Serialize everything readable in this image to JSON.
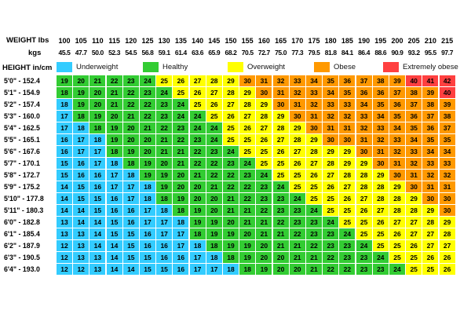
{
  "header": {
    "weight_label": "WEIGHT lbs",
    "kgs_label": "kgs",
    "height_label": "HEIGHT in/cm"
  },
  "legend": [
    {
      "key": "underweight",
      "label": "Underweight"
    },
    {
      "key": "healthy",
      "label": "Healthy"
    },
    {
      "key": "overweight",
      "label": "Overweight"
    },
    {
      "key": "obese",
      "label": "Obese"
    },
    {
      "key": "extremely_obese",
      "label": "Extremely obese"
    }
  ],
  "colors": {
    "underweight": "#33CCFF",
    "healthy": "#33CC33",
    "overweight": "#FFFF00",
    "obese": "#FF9900",
    "extremely_obese": "#FF4040",
    "text": "#000000",
    "background": "#FFFFFF"
  },
  "chart_data": {
    "type": "heatmap",
    "title": "",
    "xlabel": "WEIGHT lbs / kgs",
    "ylabel": "HEIGHT in/cm",
    "weights_lbs": [
      100,
      105,
      110,
      115,
      120,
      125,
      130,
      135,
      140,
      145,
      150,
      155,
      160,
      165,
      170,
      175,
      180,
      185,
      190,
      195,
      200,
      205,
      210,
      215
    ],
    "weights_kgs": [
      "45.5",
      "47.7",
      "50.0",
      "52.3",
      "54.5",
      "56.8",
      "59.1",
      "61.4",
      "63.6",
      "65.9",
      "68.2",
      "70.5",
      "72.7",
      "75.0",
      "77.3",
      "79.5",
      "81.8",
      "84.1",
      "86.4",
      "88.6",
      "90.9",
      "93.2",
      "95.5",
      "97.7"
    ],
    "legend_position": "top",
    "rows": [
      {
        "height_ft": "5'0\"",
        "height_cm": "152.4",
        "values": [
          19,
          20,
          21,
          22,
          23,
          24,
          25,
          26,
          27,
          28,
          29,
          30,
          31,
          32,
          33,
          34,
          35,
          36,
          37,
          38,
          39,
          40,
          41,
          42
        ],
        "green_from": 1,
        "yellow_from": 7,
        "orange_from": 12,
        "red_from": 22
      },
      {
        "height_ft": "5'1\"",
        "height_cm": "154.9",
        "values": [
          18,
          19,
          20,
          21,
          22,
          23,
          24,
          25,
          26,
          27,
          28,
          29,
          30,
          31,
          32,
          33,
          34,
          35,
          36,
          36,
          37,
          38,
          39,
          40
        ],
        "green_from": 1,
        "yellow_from": 8,
        "orange_from": 13,
        "red_from": 24
      },
      {
        "height_ft": "5'2\"",
        "height_cm": "157.4",
        "values": [
          18,
          19,
          20,
          21,
          22,
          22,
          23,
          24,
          25,
          26,
          27,
          28,
          29,
          30,
          31,
          32,
          33,
          33,
          34,
          35,
          36,
          37,
          38,
          39
        ],
        "green_from": 2,
        "yellow_from": 9,
        "orange_from": 14,
        "red_from": null
      },
      {
        "height_ft": "5'3\"",
        "height_cm": "160.0",
        "values": [
          17,
          18,
          19,
          20,
          21,
          22,
          23,
          24,
          24,
          25,
          26,
          27,
          28,
          29,
          30,
          31,
          32,
          32,
          33,
          34,
          35,
          36,
          37,
          38
        ],
        "green_from": 2,
        "yellow_from": 10,
        "orange_from": 15,
        "red_from": null
      },
      {
        "height_ft": "5'4\"",
        "height_cm": "162.5",
        "values": [
          17,
          18,
          18,
          19,
          20,
          21,
          22,
          23,
          24,
          24,
          25,
          26,
          27,
          28,
          29,
          30,
          31,
          31,
          32,
          33,
          34,
          35,
          36,
          37
        ],
        "green_from": 3,
        "yellow_from": 11,
        "orange_from": 16,
        "red_from": null
      },
      {
        "height_ft": "5'5\"",
        "height_cm": "165.1",
        "values": [
          16,
          17,
          18,
          19,
          20,
          20,
          21,
          22,
          23,
          24,
          25,
          25,
          26,
          27,
          28,
          29,
          30,
          30,
          31,
          32,
          33,
          34,
          35,
          35
        ],
        "green_from": 4,
        "yellow_from": 11,
        "orange_from": 17,
        "red_from": null
      },
      {
        "height_ft": "5'6\"",
        "height_cm": "167.6",
        "values": [
          16,
          17,
          17,
          18,
          19,
          20,
          21,
          21,
          22,
          23,
          24,
          25,
          25,
          26,
          27,
          28,
          29,
          29,
          30,
          31,
          32,
          33,
          34,
          34
        ],
        "green_from": 4,
        "yellow_from": 12,
        "orange_from": 19,
        "red_from": null
      },
      {
        "height_ft": "5'7\"",
        "height_cm": "170.1",
        "values": [
          15,
          16,
          17,
          18,
          18,
          19,
          20,
          21,
          22,
          22,
          23,
          24,
          25,
          25,
          26,
          27,
          28,
          29,
          29,
          30,
          31,
          32,
          33,
          33
        ],
        "green_from": 5,
        "yellow_from": 13,
        "orange_from": 20,
        "red_from": null
      },
      {
        "height_ft": "5'8\"",
        "height_cm": "172.7",
        "values": [
          15,
          16,
          16,
          17,
          18,
          19,
          19,
          20,
          21,
          22,
          22,
          23,
          24,
          25,
          25,
          26,
          27,
          28,
          28,
          29,
          30,
          31,
          32,
          32
        ],
        "green_from": 6,
        "yellow_from": 14,
        "orange_from": 21,
        "red_from": null
      },
      {
        "height_ft": "5'9\"",
        "height_cm": "175.2",
        "values": [
          14,
          15,
          16,
          17,
          17,
          18,
          19,
          20,
          20,
          21,
          22,
          22,
          23,
          24,
          25,
          25,
          26,
          27,
          28,
          28,
          29,
          30,
          31,
          31
        ],
        "green_from": 7,
        "yellow_from": 15,
        "orange_from": 22,
        "red_from": null
      },
      {
        "height_ft": "5'10\"",
        "height_cm": "177.8",
        "values": [
          14,
          15,
          15,
          16,
          17,
          18,
          18,
          19,
          20,
          20,
          21,
          22,
          23,
          23,
          24,
          25,
          25,
          26,
          27,
          28,
          28,
          29,
          30,
          30
        ],
        "green_from": 7,
        "yellow_from": 16,
        "orange_from": 23,
        "red_from": null
      },
      {
        "height_ft": "5'11\"",
        "height_cm": "180.3",
        "values": [
          14,
          14,
          15,
          16,
          16,
          17,
          18,
          18,
          19,
          20,
          21,
          21,
          22,
          23,
          23,
          24,
          25,
          25,
          26,
          27,
          28,
          28,
          29,
          30
        ],
        "green_from": 8,
        "yellow_from": 17,
        "orange_from": 24,
        "red_from": null
      },
      {
        "height_ft": "6'0\"",
        "height_cm": "182.8",
        "values": [
          13,
          14,
          14,
          15,
          16,
          17,
          17,
          18,
          19,
          19,
          20,
          21,
          21,
          22,
          23,
          23,
          24,
          25,
          25,
          26,
          27,
          27,
          28,
          29
        ],
        "green_from": 9,
        "yellow_from": 18,
        "orange_from": null,
        "red_from": null
      },
      {
        "height_ft": "6'1\"",
        "height_cm": "185.4",
        "values": [
          13,
          13,
          14,
          15,
          15,
          16,
          17,
          17,
          18,
          19,
          19,
          20,
          21,
          21,
          22,
          23,
          23,
          24,
          25,
          25,
          26,
          27,
          27,
          28
        ],
        "green_from": 9,
        "yellow_from": 19,
        "orange_from": null,
        "red_from": null
      },
      {
        "height_ft": "6'2\"",
        "height_cm": "187.9",
        "values": [
          12,
          13,
          14,
          14,
          15,
          16,
          16,
          17,
          18,
          18,
          19,
          19,
          20,
          21,
          21,
          22,
          23,
          23,
          24,
          25,
          25,
          26,
          27,
          27
        ],
        "green_from": 10,
        "yellow_from": 20,
        "orange_from": null,
        "red_from": null
      },
      {
        "height_ft": "6'3\"",
        "height_cm": "190.5",
        "values": [
          12,
          13,
          13,
          14,
          15,
          15,
          16,
          16,
          17,
          18,
          18,
          19,
          20,
          20,
          21,
          21,
          22,
          23,
          23,
          24,
          25,
          25,
          26,
          26
        ],
        "green_from": 11,
        "yellow_from": 21,
        "orange_from": null,
        "red_from": null
      },
      {
        "height_ft": "6'4\"",
        "height_cm": "193.0",
        "values": [
          12,
          12,
          13,
          14,
          14,
          15,
          15,
          16,
          17,
          17,
          18,
          18,
          19,
          20,
          20,
          21,
          22,
          22,
          23,
          23,
          24,
          25,
          25,
          26
        ],
        "green_from": 12,
        "yellow_from": 22,
        "orange_from": null,
        "red_from": null
      }
    ]
  }
}
